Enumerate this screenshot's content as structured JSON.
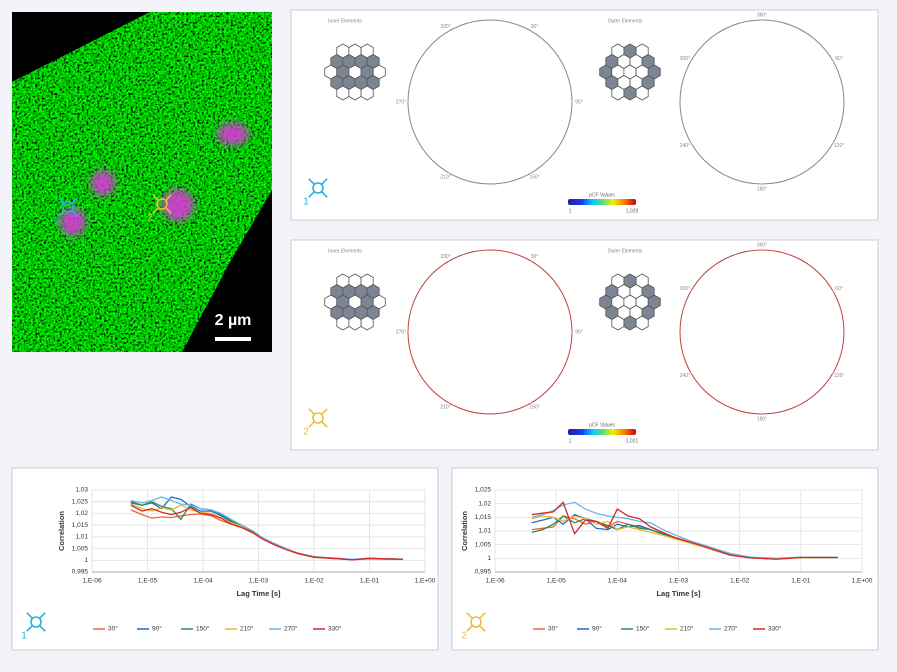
{
  "image": {
    "scale_bar": "2 µm",
    "markers": [
      "1",
      "2"
    ]
  },
  "polar_panels": [
    {
      "inner_label": "Inner Elements",
      "outer_label": "Outer Elements",
      "inner_angles": [
        "330°",
        "30°",
        "90°",
        "150°",
        "210°",
        "270°"
      ],
      "outer_angles": [
        "360°",
        "60°",
        "120°",
        "180°",
        "240°",
        "300°"
      ],
      "colorbar": {
        "title": "pCF Values",
        "min": "1",
        "max": "1,028"
      },
      "marker": "1"
    },
    {
      "inner_label": "Inner Elements",
      "outer_label": "Outer Elements",
      "inner_angles": [
        "330°",
        "30°",
        "90°",
        "150°",
        "210°",
        "270°"
      ],
      "outer_angles": [
        "360°",
        "60°",
        "120°",
        "180°",
        "240°",
        "300°"
      ],
      "colorbar": {
        "title": "pCF Values",
        "min": "1",
        "max": "1,021"
      },
      "marker": "2"
    }
  ],
  "chart_data": [
    {
      "type": "line",
      "marker": "1",
      "xlabel": "Lag Time [s]",
      "ylabel": "Correlation",
      "log_x": true,
      "grid": true,
      "x": [
        5e-06,
        8e-06,
        1.2e-05,
        1.8e-05,
        2.7e-05,
        4e-05,
        6e-05,
        9e-05,
        0.00014,
        0.00021,
        0.00032,
        0.0005,
        0.0008,
        0.0012,
        0.002,
        0.0032,
        0.005,
        0.01,
        0.02,
        0.05,
        0.1,
        0.4
      ],
      "xlim": [
        1e-06,
        1
      ],
      "xticks": [
        {
          "value": 1e-06,
          "label": "1,E-06"
        },
        {
          "value": 1e-05,
          "label": "1,E-05"
        },
        {
          "value": 0.0001,
          "label": "1,E-04"
        },
        {
          "value": 0.001,
          "label": "1,E-03"
        },
        {
          "value": 0.01,
          "label": "1,E-02"
        },
        {
          "value": 0.1,
          "label": "1,E-01"
        },
        {
          "value": 1,
          "label": "1,E+00"
        }
      ],
      "ylim": [
        0.995,
        1.03
      ],
      "yticks": [
        {
          "value": 0.995,
          "label": "0,995"
        },
        1,
        {
          "value": 1.005,
          "label": "1,005"
        },
        {
          "value": 1.01,
          "label": "1,01"
        },
        {
          "value": 1.015,
          "label": "1,015"
        },
        {
          "value": 1.02,
          "label": "1,02"
        },
        {
          "value": 1.025,
          "label": "1,025"
        },
        {
          "value": 1.03,
          "label": "1,03"
        }
      ],
      "series": [
        {
          "name": "30°",
          "color": "#f4623a",
          "values": [
            1.0215,
            1.0195,
            1.018,
            1.0185,
            1.0182,
            1.019,
            1.0195,
            1.0198,
            1.019,
            1.017,
            1.0155,
            1.014,
            1.0115,
            1.009,
            1.0065,
            1.0045,
            1.003,
            1.0015,
            1.001,
            1.0003,
            1.0008,
            1.0004
          ]
        },
        {
          "name": "90°",
          "color": "#1f6fc5",
          "values": [
            1.025,
            1.0235,
            1.0245,
            1.022,
            1.027,
            1.026,
            1.023,
            1.021,
            1.021,
            1.019,
            1.0165,
            1.0145,
            1.012,
            1.0095,
            1.007,
            1.0048,
            1.003,
            1.0015,
            1.0008,
            1.0002,
            1.0009,
            1.0004
          ]
        },
        {
          "name": "150°",
          "color": "#2e8b57",
          "values": [
            1.0245,
            1.0235,
            1.025,
            1.023,
            1.022,
            1.0175,
            1.024,
            1.022,
            1.0215,
            1.0195,
            1.017,
            1.0145,
            1.012,
            1.0092,
            1.0068,
            1.0047,
            1.003,
            1.0013,
            1.0009,
            1.0003,
            1.0006,
            1.0004
          ]
        },
        {
          "name": "210°",
          "color": "#e8b92e",
          "values": [
            1.024,
            1.022,
            1.021,
            1.0225,
            1.0215,
            1.0235,
            1.0215,
            1.0205,
            1.02,
            1.018,
            1.016,
            1.0145,
            1.0115,
            1.009,
            1.0066,
            1.0046,
            1.0028,
            1.0012,
            1.0009,
            1.0002,
            1.0007,
            1.0004
          ]
        },
        {
          "name": "270°",
          "color": "#6bb8e8",
          "values": [
            1.0255,
            1.0245,
            1.0255,
            1.027,
            1.0255,
            1.024,
            1.0235,
            1.022,
            1.0215,
            1.02,
            1.0175,
            1.015,
            1.0125,
            1.0095,
            1.007,
            1.005,
            1.0032,
            1.0015,
            1.001,
            1.0004,
            1.0008,
            1.0005
          ]
        },
        {
          "name": "330°",
          "color": "#d62728",
          "values": [
            1.0235,
            1.021,
            1.022,
            1.0205,
            1.0195,
            1.0205,
            1.0225,
            1.02,
            1.0195,
            1.018,
            1.0155,
            1.014,
            1.0118,
            1.009,
            1.0065,
            1.0045,
            1.003,
            1.0013,
            1.0009,
            1.0002,
            1.0008,
            1.0004
          ]
        }
      ]
    },
    {
      "type": "line",
      "marker": "2",
      "xlabel": "Lag Time [s]",
      "ylabel": "Correlation",
      "log_x": true,
      "grid": true,
      "x": [
        4e-06,
        6e-06,
        9e-06,
        1.3e-05,
        2e-05,
        3e-05,
        4.5e-05,
        7e-05,
        0.0001,
        0.00015,
        0.00023,
        0.00035,
        0.00055,
        0.0009,
        0.0015,
        0.0025,
        0.004,
        0.007,
        0.015,
        0.04,
        0.1,
        0.4
      ],
      "xlim": [
        1e-06,
        1
      ],
      "xticks": [
        {
          "value": 1e-06,
          "label": "1,E-06"
        },
        {
          "value": 1e-05,
          "label": "1,E-05"
        },
        {
          "value": 0.0001,
          "label": "1,E-04"
        },
        {
          "value": 0.001,
          "label": "1,E-03"
        },
        {
          "value": 0.01,
          "label": "1,E-02"
        },
        {
          "value": 0.1,
          "label": "1,E-01"
        },
        {
          "value": 1,
          "label": "1,E+00"
        }
      ],
      "ylim": [
        0.995,
        1.025
      ],
      "yticks": [
        {
          "value": 0.995,
          "label": "0,995"
        },
        1,
        {
          "value": 1.005,
          "label": "1,005"
        },
        {
          "value": 1.01,
          "label": "1,01"
        },
        {
          "value": 1.015,
          "label": "1,015"
        },
        {
          "value": 1.02,
          "label": "1,02"
        },
        {
          "value": 1.025,
          "label": "1,025"
        }
      ],
      "series": [
        {
          "name": "30°",
          "color": "#f4623a",
          "values": [
            1.0105,
            1.011,
            1.0115,
            1.0155,
            1.0145,
            1.0125,
            1.0135,
            1.0115,
            1.0135,
            1.0125,
            1.0115,
            1.0105,
            1.009,
            1.0075,
            1.006,
            1.0045,
            1.0032,
            1.0015,
            1.0003,
            0.9998,
            1.0003,
            1.0004
          ]
        },
        {
          "name": "90°",
          "color": "#1f6fc5",
          "values": [
            1.013,
            1.014,
            1.015,
            1.0125,
            1.016,
            1.0145,
            1.011,
            1.0105,
            1.0125,
            1.0115,
            1.012,
            1.0105,
            1.009,
            1.0075,
            1.0058,
            1.0045,
            1.003,
            1.0013,
            1.0002,
            0.9998,
            1.0004,
            1.0003
          ]
        },
        {
          "name": "150°",
          "color": "#2e8b57",
          "values": [
            1.0095,
            1.0105,
            1.0125,
            1.0155,
            1.013,
            1.0145,
            1.0135,
            1.012,
            1.0105,
            1.0125,
            1.011,
            1.0105,
            1.0088,
            1.0072,
            1.006,
            1.0043,
            1.003,
            1.0012,
            1.0003,
            0.9999,
            1.0003,
            1.0003
          ]
        },
        {
          "name": "210°",
          "color": "#e8b92e",
          "values": [
            1.0145,
            1.0155,
            1.015,
            1.0135,
            1.0155,
            1.0145,
            1.0125,
            1.0135,
            1.0105,
            1.0115,
            1.0105,
            1.0095,
            1.0085,
            1.007,
            1.0056,
            1.0042,
            1.0028,
            1.0012,
            1.0002,
            0.9998,
            1.0002,
            1.0003
          ]
        },
        {
          "name": "270°",
          "color": "#6bb8e8",
          "values": [
            1.015,
            1.016,
            1.0175,
            1.0195,
            1.0205,
            1.018,
            1.0165,
            1.0155,
            1.015,
            1.0145,
            1.0135,
            1.013,
            1.0105,
            1.0085,
            1.0065,
            1.005,
            1.0035,
            1.0018,
            1.0004,
            1.0,
            1.0004,
            1.0004
          ]
        },
        {
          "name": "330°",
          "color": "#d62728",
          "values": [
            1.016,
            1.0165,
            1.017,
            1.0205,
            1.009,
            1.014,
            1.0135,
            1.011,
            1.018,
            1.0155,
            1.0145,
            1.0115,
            1.0095,
            1.0075,
            1.006,
            1.0045,
            1.003,
            1.0012,
            1.0002,
            0.9997,
            1.0003,
            1.0003
          ]
        }
      ]
    }
  ]
}
